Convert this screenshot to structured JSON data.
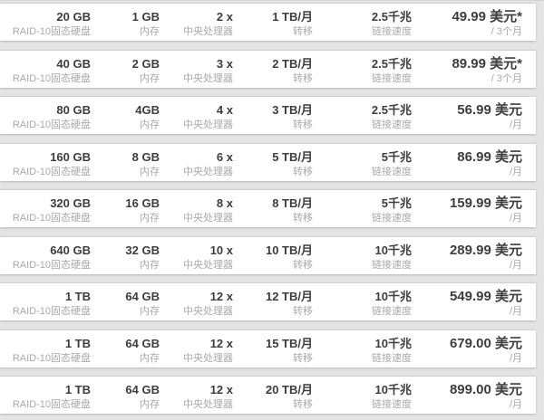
{
  "colors": {
    "page_background": "#e4e4e4",
    "row_background": "#ffffff",
    "value_text": "#3d3d3d",
    "label_text": "#a9a9a9"
  },
  "columns": {
    "storage": "RAID-10固态硬盘",
    "ram": "内存",
    "cpu": "中央处理器",
    "transfer": "转移",
    "speed": "链接速度"
  },
  "plans": [
    {
      "storage": "20 GB",
      "ram": "1 GB",
      "cpu": "2 x",
      "transfer": "1 TB/月",
      "speed": "2.5千兆",
      "price": "49.99 美元*",
      "period": "/ 3个月"
    },
    {
      "storage": "40 GB",
      "ram": "2 GB",
      "cpu": "3 x",
      "transfer": "2 TB/月",
      "speed": "2.5千兆",
      "price": "89.99 美元*",
      "period": "/ 3个月"
    },
    {
      "storage": "80 GB",
      "ram": "4GB",
      "cpu": "4 x",
      "transfer": "3 TB/月",
      "speed": "2.5千兆",
      "price": "56.99 美元",
      "period": "/月"
    },
    {
      "storage": "160 GB",
      "ram": "8 GB",
      "cpu": "6 x",
      "transfer": "5 TB/月",
      "speed": "5千兆",
      "price": "86.99 美元",
      "period": "/月"
    },
    {
      "storage": "320 GB",
      "ram": "16 GB",
      "cpu": "8 x",
      "transfer": "8 TB/月",
      "speed": "5千兆",
      "price": "159.99 美元",
      "period": "/月"
    },
    {
      "storage": "640 GB",
      "ram": "32 GB",
      "cpu": "10 x",
      "transfer": "10 TB/月",
      "speed": "10千兆",
      "price": "289.99 美元",
      "period": "/月"
    },
    {
      "storage": "1 TB",
      "ram": "64 GB",
      "cpu": "12 x",
      "transfer": "12 TB/月",
      "speed": "10千兆",
      "price": "549.99 美元",
      "period": "/月"
    },
    {
      "storage": "1 TB",
      "ram": "64 GB",
      "cpu": "12 x",
      "transfer": "15 TB/月",
      "speed": "10千兆",
      "price": "679.00 美元",
      "period": "/月"
    },
    {
      "storage": "1 TB",
      "ram": "64 GB",
      "cpu": "12 x",
      "transfer": "20 TB/月",
      "speed": "10千兆",
      "price": "899.00 美元",
      "period": "/月"
    }
  ]
}
